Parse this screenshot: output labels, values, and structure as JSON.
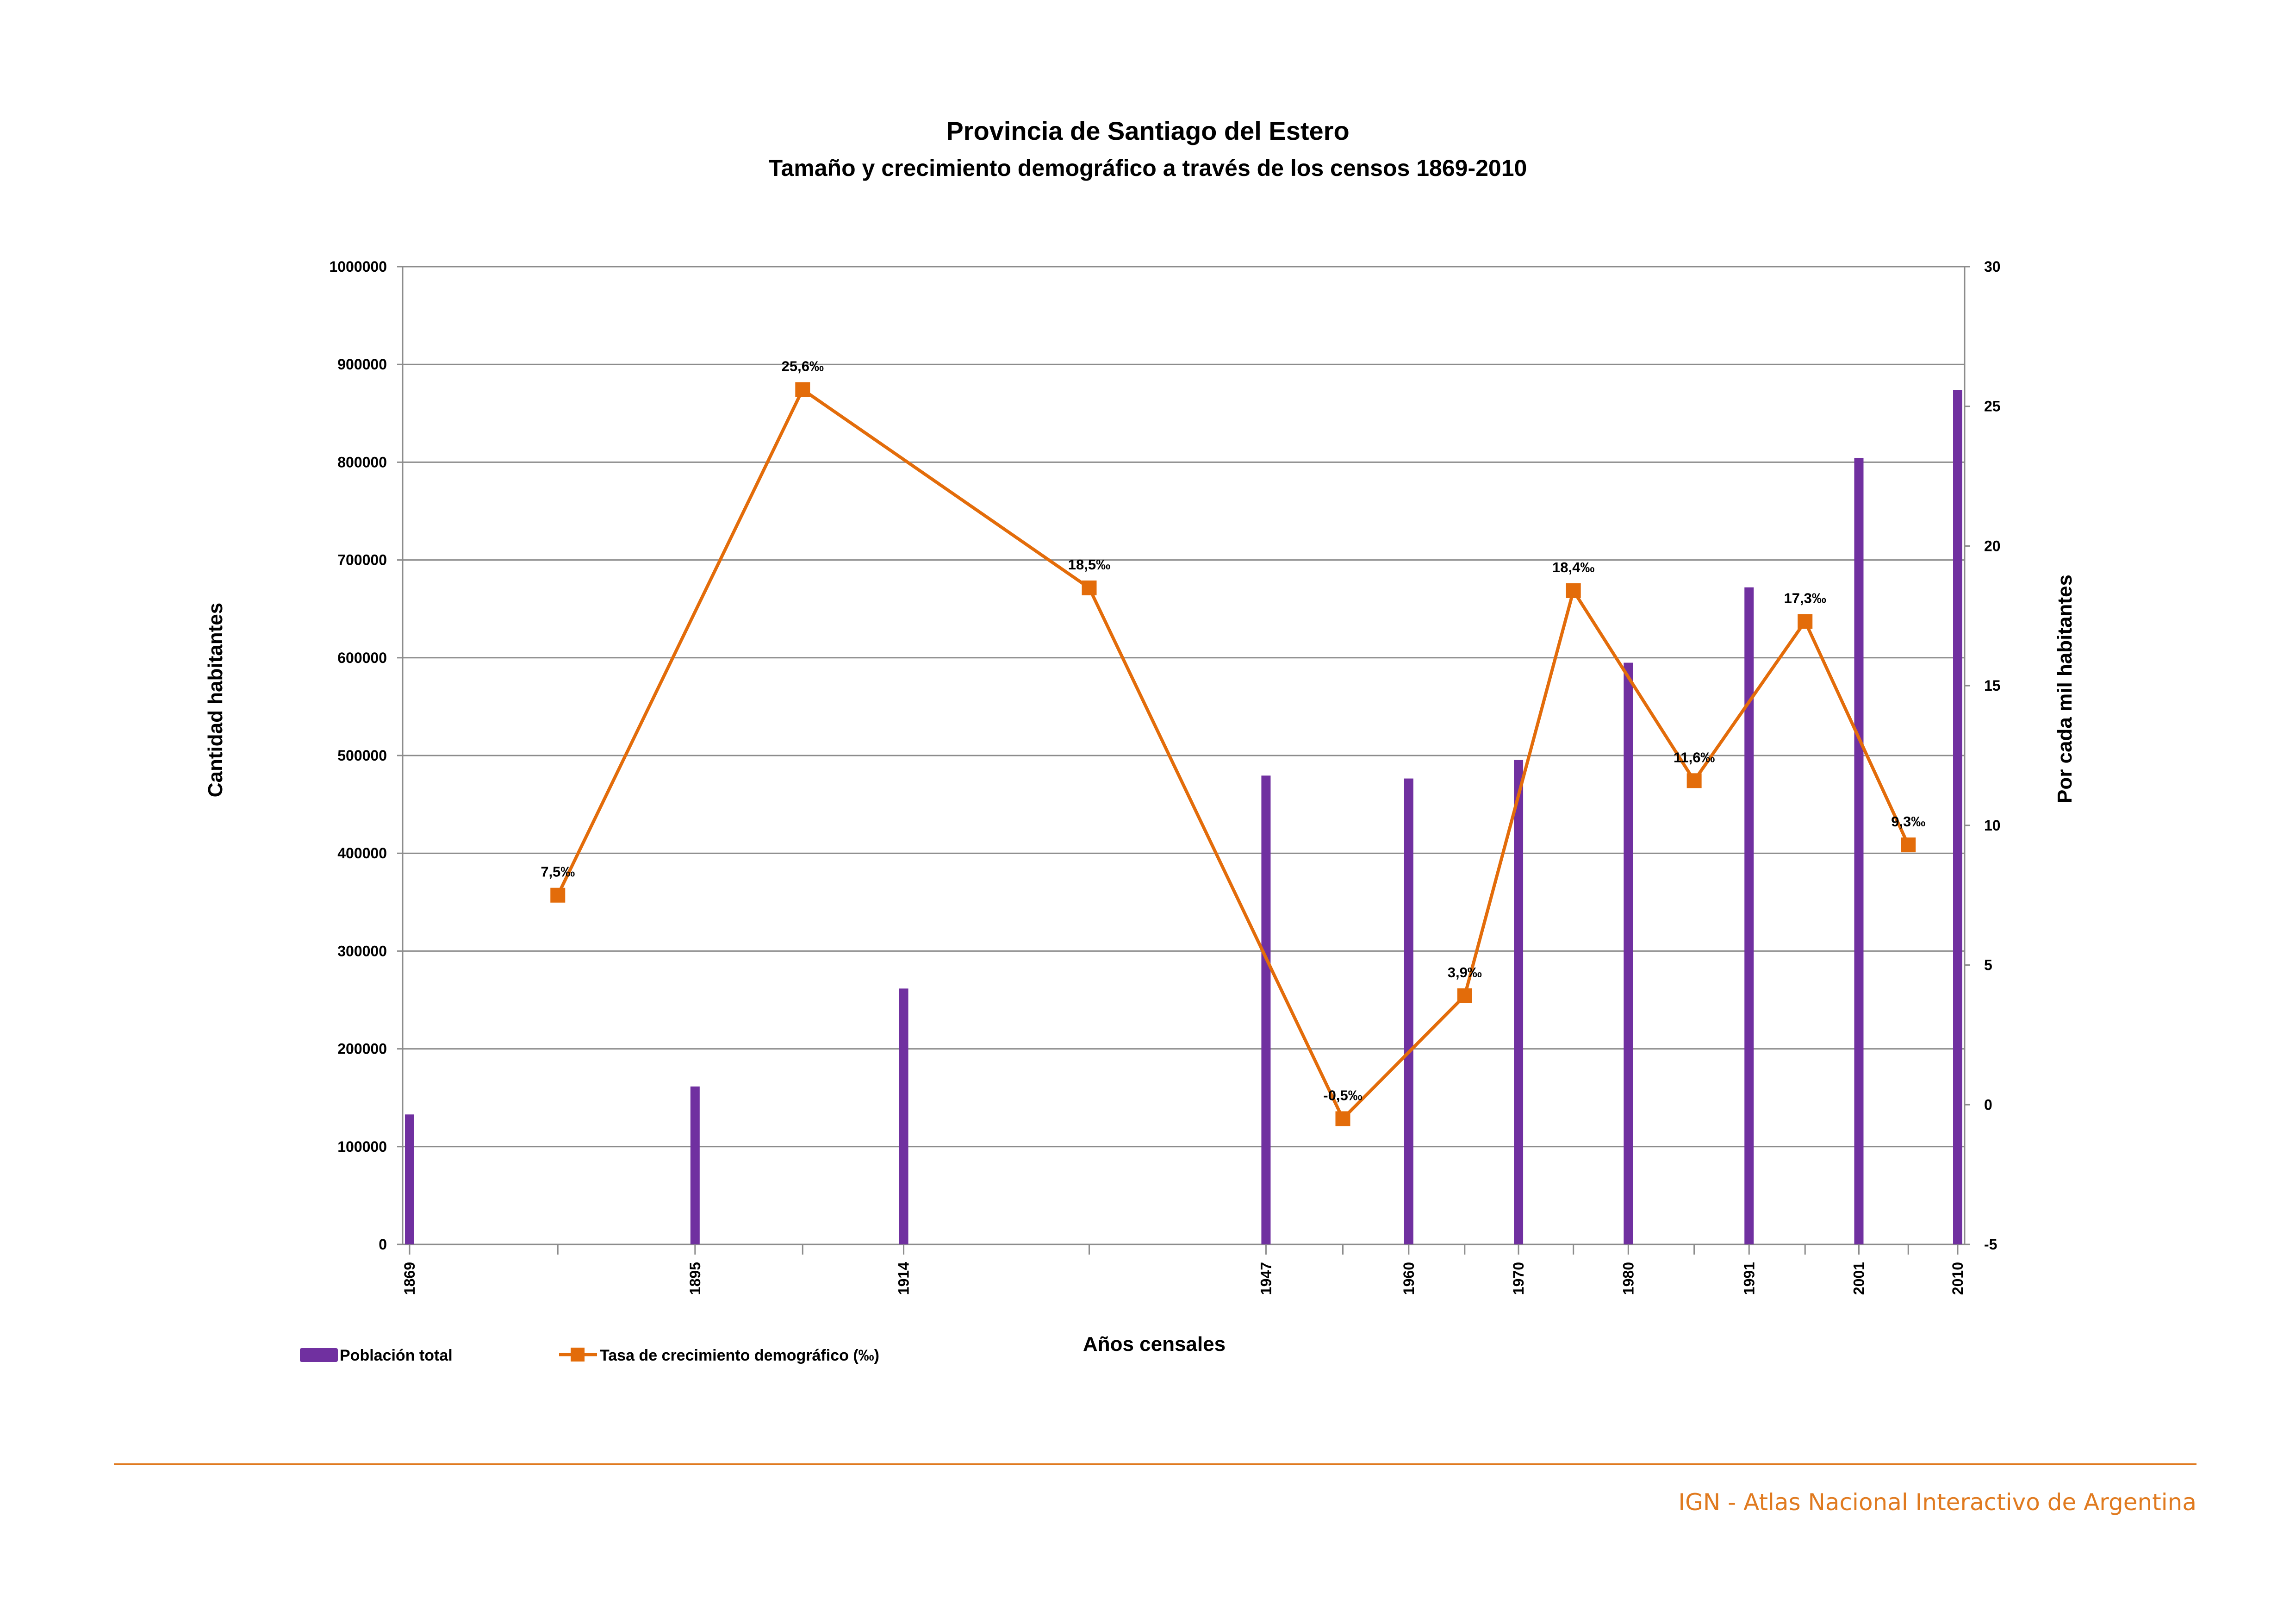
{
  "colors": {
    "population": "#7030a0",
    "growth": "#e36c0a",
    "grid": "#8c8c8c",
    "footer": "#e07a1f"
  },
  "chart_data": {
    "type": "bar",
    "title": "Provincia de Santiago del Estero",
    "subtitle": "Tamaño y crecimiento demográfico a través de los censos 1869-2010",
    "xlabel": "Años censales",
    "ylabel": "Cantidad habitantes",
    "y2label": "Por cada mil habitantes",
    "x_range": [
      1869,
      2010
    ],
    "ylim": [
      0,
      1000000
    ],
    "y_ticks": [
      "0",
      "100000",
      "200000",
      "300000",
      "400000",
      "500000",
      "600000",
      "700000",
      "800000",
      "900000",
      "1000000"
    ],
    "y2lim": [
      -5,
      30
    ],
    "y2_ticks": [
      "-5",
      "0",
      "5",
      "10",
      "15",
      "20",
      "25",
      "30"
    ],
    "grid": true,
    "legend_position": "bottom-left",
    "series": [
      {
        "name": "Población total",
        "type": "bar",
        "axis": "left",
        "x": [
          1869,
          1895,
          1914,
          1947,
          1960,
          1970,
          1980,
          1991,
          2001,
          2010
        ],
        "values": [
          132898,
          161502,
          261678,
          479473,
          476503,
          495419,
          594920,
          671988,
          804457,
          874006
        ]
      },
      {
        "name": "Tasa de crecimiento demográfico (‰)",
        "type": "line",
        "axis": "right",
        "marker": "square",
        "x": [
          1882.5,
          1904.8,
          1930.9,
          1954,
          1965.1,
          1975,
          1986,
          1996.1,
          2005.5
        ],
        "values": [
          7.5,
          25.6,
          18.5,
          -0.5,
          3.9,
          18.4,
          11.6,
          17.3,
          9.3
        ],
        "labels": [
          "7,5‰",
          "25,6‰",
          "18,5‰",
          "-0,5‰",
          "3,9‰",
          "18,4‰",
          "11,6‰",
          "17,3‰",
          "9,3‰"
        ]
      }
    ]
  },
  "footer": {
    "text": "IGN - Atlas Nacional Interactivo de Argentina"
  }
}
